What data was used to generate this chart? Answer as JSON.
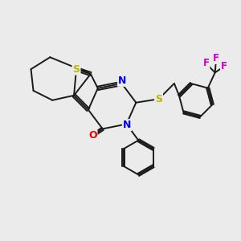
{
  "bg_color": "#ebebeb",
  "bond_color": "#1a1a1a",
  "S_color": "#b8b800",
  "N_color": "#0000ee",
  "O_color": "#ee0000",
  "F_color": "#cc00cc",
  "line_width": 1.4,
  "xlim": [
    0,
    10
  ],
  "ylim": [
    0,
    10
  ]
}
